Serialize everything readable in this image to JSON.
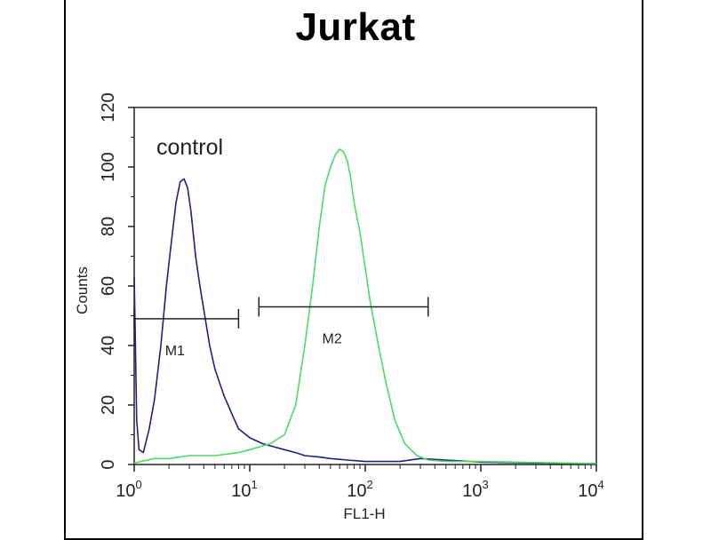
{
  "chart_data": {
    "type": "line",
    "title": "Jurkat",
    "xlabel": "FL1-H",
    "ylabel": "Counts",
    "x_scale": "log",
    "xlim": [
      1,
      10000
    ],
    "ylim": [
      0,
      120
    ],
    "x_ticks": [
      {
        "base": "10",
        "exp": "0",
        "value": 1
      },
      {
        "base": "10",
        "exp": "1",
        "value": 10
      },
      {
        "base": "10",
        "exp": "2",
        "value": 100
      },
      {
        "base": "10",
        "exp": "3",
        "value": 1000
      },
      {
        "base": "10",
        "exp": "4",
        "value": 10000
      }
    ],
    "y_ticks": [
      "0",
      "20",
      "40",
      "60",
      "80",
      "100",
      "120"
    ],
    "grid": false,
    "annotation": "control",
    "series": [
      {
        "color": "#1a237e",
        "x": [
          1,
          1.02,
          1.05,
          1.1,
          1.2,
          1.35,
          1.5,
          1.7,
          1.9,
          2.1,
          2.3,
          2.5,
          2.7,
          2.9,
          3.1,
          3.4,
          3.7,
          4.0,
          4.5,
          5,
          6,
          7,
          8,
          10,
          13,
          16,
          20,
          25,
          30,
          40,
          50,
          70,
          100,
          150,
          200,
          300,
          500,
          1000,
          3000,
          10000
        ],
        "y": [
          63,
          45,
          15,
          5,
          4,
          12,
          22,
          40,
          60,
          75,
          88,
          95,
          96,
          93,
          85,
          70,
          60,
          52,
          40,
          32,
          23,
          17,
          12,
          9,
          7,
          6,
          5,
          4,
          3,
          2.5,
          2,
          1.5,
          1,
          1,
          1,
          2,
          1.5,
          0.8,
          0.5,
          0.3
        ]
      },
      {
        "color": "#4cd964",
        "x": [
          1,
          1.5,
          2,
          3,
          5,
          8,
          10,
          15,
          20,
          25,
          30,
          35,
          40,
          45,
          50,
          55,
          60,
          65,
          70,
          75,
          80,
          90,
          100,
          110,
          130,
          150,
          180,
          220,
          280,
          350,
          500,
          1000,
          2000,
          5000,
          10000
        ],
        "y": [
          0.5,
          2,
          2,
          3,
          3,
          4,
          5,
          7,
          10,
          20,
          40,
          60,
          80,
          94,
          100,
          104,
          106,
          105,
          102,
          96,
          88,
          78,
          66,
          55,
          40,
          28,
          15,
          7,
          3,
          1.5,
          1,
          1,
          0.8,
          0.5,
          0.3
        ]
      }
    ],
    "markers": [
      {
        "label": "M1",
        "x_start": 1,
        "x_end": 8,
        "y": 49
      },
      {
        "label": "M2",
        "x_start": 12,
        "x_end": 350,
        "y": 53
      }
    ]
  }
}
